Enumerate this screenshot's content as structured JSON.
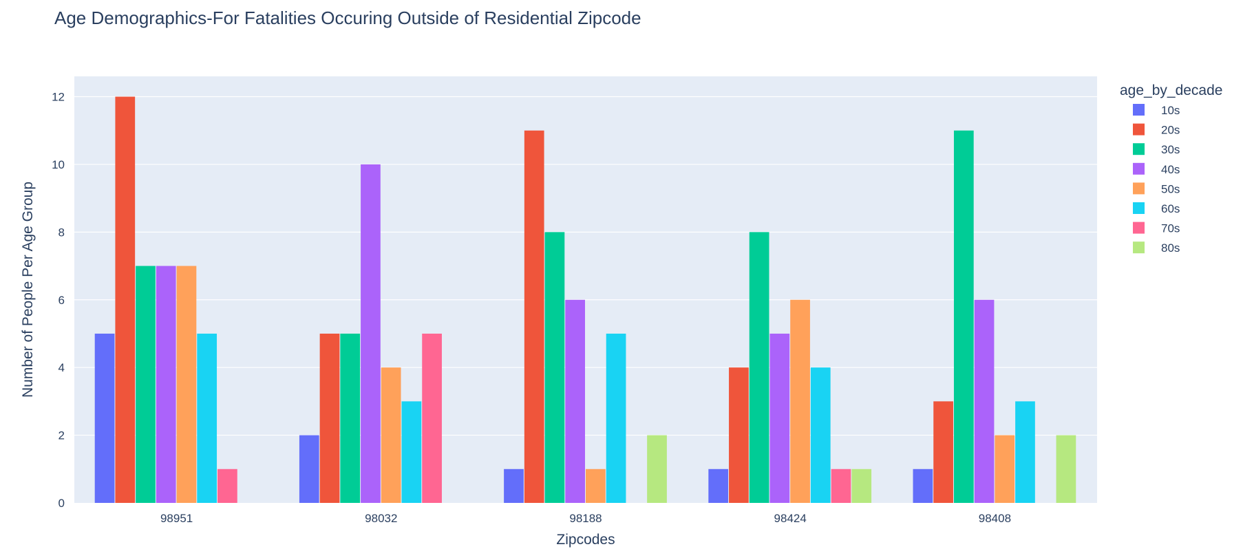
{
  "chart_data": {
    "type": "bar",
    "title": "Age Demographics-For Fatalities Occuring Outside of Residential Zipcode",
    "xlabel": "Zipcodes",
    "ylabel": "Number of People Per Age Group",
    "categories": [
      "98951",
      "98032",
      "98188",
      "98424",
      "98408"
    ],
    "ylim": [
      0,
      12.6
    ],
    "yticks": [
      0,
      2,
      4,
      6,
      8,
      10,
      12
    ],
    "grid": true,
    "legend_title": "age_by_decade",
    "legend_position": "right",
    "series": [
      {
        "name": "10s",
        "color": "#636efa",
        "values": [
          5,
          2,
          1,
          1,
          1
        ]
      },
      {
        "name": "20s",
        "color": "#ef553b",
        "values": [
          12,
          5,
          11,
          4,
          3
        ]
      },
      {
        "name": "30s",
        "color": "#00cc96",
        "values": [
          7,
          5,
          8,
          8,
          11
        ]
      },
      {
        "name": "40s",
        "color": "#ab63fa",
        "values": [
          7,
          10,
          6,
          5,
          6
        ]
      },
      {
        "name": "50s",
        "color": "#ffa15a",
        "values": [
          7,
          4,
          1,
          6,
          2
        ]
      },
      {
        "name": "60s",
        "color": "#19d3f3",
        "values": [
          5,
          3,
          5,
          4,
          3
        ]
      },
      {
        "name": "70s",
        "color": "#ff6692",
        "values": [
          1,
          5,
          null,
          1,
          null
        ]
      },
      {
        "name": "80s",
        "color": "#b6e880",
        "values": [
          null,
          null,
          2,
          1,
          2
        ]
      }
    ]
  },
  "colors": {
    "plot_bg": "#e5ecf6",
    "grid": "#ffffff",
    "text": "#2a3f5f"
  }
}
